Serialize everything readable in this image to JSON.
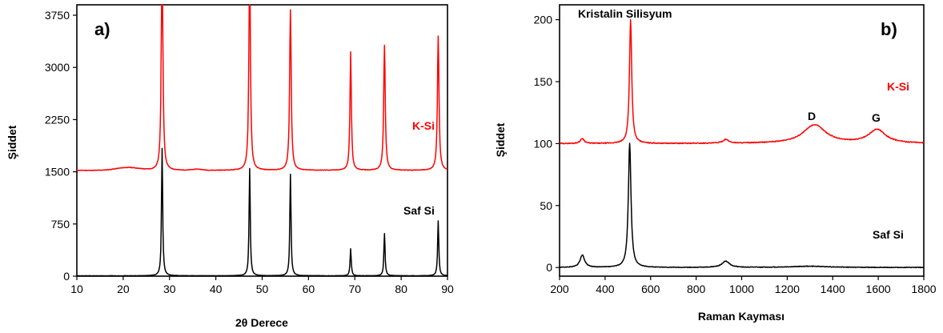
{
  "chart_data": [
    {
      "type": "line",
      "panel_label": "a)",
      "xlabel": "2θ Derece",
      "ylabel": "Şiddet",
      "xlim": [
        10,
        90
      ],
      "ylim": [
        0,
        3900
      ],
      "xticks": [
        10,
        20,
        30,
        40,
        50,
        60,
        70,
        80,
        90
      ],
      "yticks": [
        0,
        750,
        1500,
        2250,
        3000,
        3750
      ],
      "grid": false,
      "series": [
        {
          "name": "K-Si",
          "color": "#ff0000",
          "baseline": 1520,
          "peaks": [
            {
              "x": 28.4,
              "y": 3780,
              "w": 0.18
            },
            {
              "x": 47.3,
              "y": 2950,
              "w": 0.2
            },
            {
              "x": 56.1,
              "y": 2310,
              "w": 0.2
            },
            {
              "x": 69.1,
              "y": 1700,
              "w": 0.18
            },
            {
              "x": 76.4,
              "y": 1800,
              "w": 0.2
            },
            {
              "x": 88.0,
              "y": 1930,
              "w": 0.2
            }
          ],
          "humps": [
            {
              "x": 21,
              "y": 40,
              "w": 3.5
            },
            {
              "x": 36,
              "y": 15,
              "w": 1.5
            }
          ]
        },
        {
          "name": "Saf Si",
          "color": "#000000",
          "baseline": 5,
          "peaks": [
            {
              "x": 28.4,
              "y": 1830,
              "w": 0.15
            },
            {
              "x": 47.3,
              "y": 1540,
              "w": 0.15
            },
            {
              "x": 56.1,
              "y": 1460,
              "w": 0.15
            },
            {
              "x": 69.1,
              "y": 390,
              "w": 0.15
            },
            {
              "x": 76.4,
              "y": 610,
              "w": 0.15
            },
            {
              "x": 88.0,
              "y": 790,
              "w": 0.15
            }
          ],
          "humps": []
        }
      ]
    },
    {
      "type": "line",
      "panel_label": "b)",
      "xlabel": "Raman Kayması",
      "ylabel": "Şiddet",
      "xlim": [
        200,
        1800
      ],
      "ylim": [
        -7,
        212
      ],
      "xticks": [
        200,
        400,
        600,
        800,
        1000,
        1200,
        1400,
        1600,
        1800
      ],
      "yticks": [
        0,
        50,
        100,
        150,
        200
      ],
      "grid": false,
      "annotations": [
        "Kristalin Silisyum",
        "D",
        "G"
      ],
      "series": [
        {
          "name": "K-Si",
          "color": "#ff0000",
          "baseline": 100,
          "peaks": [
            {
              "x": 512,
              "y": 100,
              "w": 6
            },
            {
              "x": 300,
              "y": 4,
              "w": 10
            },
            {
              "x": 930,
              "y": 3,
              "w": 15
            },
            {
              "x": 1320,
              "y": 15,
              "w": 60
            },
            {
              "x": 1595,
              "y": 11,
              "w": 45
            }
          ],
          "humps": []
        },
        {
          "name": "Saf Si",
          "color": "#000000",
          "baseline": 0,
          "peaks": [
            {
              "x": 508,
              "y": 100,
              "w": 7
            },
            {
              "x": 300,
              "y": 10,
              "w": 12
            },
            {
              "x": 930,
              "y": 5,
              "w": 20
            },
            {
              "x": 1300,
              "y": 1,
              "w": 100
            }
          ],
          "humps": []
        }
      ]
    }
  ]
}
